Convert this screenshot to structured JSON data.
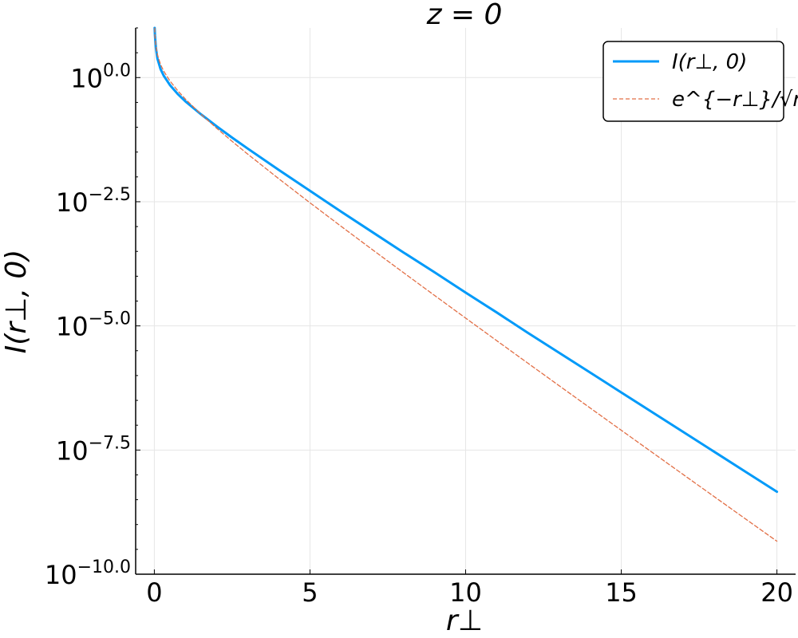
{
  "chart_data": {
    "type": "line",
    "title": "z = 0",
    "xlabel": "r⊥",
    "ylabel": "I(r⊥, 0)",
    "xlim": [
      -0.6,
      20.6
    ],
    "ylim_log10": [
      -10,
      1
    ],
    "yscale": "log10",
    "grid": true,
    "legend_position": "top-right",
    "x_ticks": [
      {
        "value": 0,
        "label": "0"
      },
      {
        "value": 5,
        "label": "5"
      },
      {
        "value": 10,
        "label": "10"
      },
      {
        "value": 15,
        "label": "15"
      },
      {
        "value": 20,
        "label": "20"
      }
    ],
    "y_ticks": [
      {
        "value_log10": 0,
        "base": "10",
        "exp": "0.0"
      },
      {
        "value_log10": -2.5,
        "base": "10",
        "exp": "−2.5"
      },
      {
        "value_log10": -5,
        "base": "10",
        "exp": "−5.0"
      },
      {
        "value_log10": -7.5,
        "base": "10",
        "exp": "−7.5"
      },
      {
        "value_log10": -10,
        "base": "10",
        "exp": "−10.0"
      }
    ],
    "series": [
      {
        "name": "I(r⊥, 0)",
        "color": "#009AF9",
        "style": "solid",
        "x": [
          0.01,
          0.02,
          0.05,
          0.1,
          0.2,
          0.3,
          0.5,
          0.75,
          1,
          1.5,
          2,
          2.5,
          3,
          4,
          5,
          6,
          7,
          8,
          9,
          10,
          11,
          12,
          13,
          14,
          15,
          16,
          17,
          18,
          19,
          20
        ],
        "y_log10": [
          1.1,
          0.85,
          0.6,
          0.38,
          0.17,
          0.04,
          -0.15,
          -0.33,
          -0.48,
          -0.74,
          -0.98,
          -1.21,
          -1.43,
          -1.86,
          -2.28,
          -2.7,
          -3.11,
          -3.52,
          -3.92,
          -4.33,
          -4.73,
          -5.14,
          -5.54,
          -5.94,
          -6.34,
          -6.74,
          -7.14,
          -7.54,
          -7.94,
          -8.34
        ]
      },
      {
        "name": "e^{−r⊥}/√r⊥",
        "color": "#E26F46",
        "style": "dashed",
        "x": [
          0.01,
          0.02,
          0.05,
          0.1,
          0.2,
          0.3,
          0.5,
          0.75,
          1,
          1.5,
          2,
          2.5,
          3,
          4,
          5,
          6,
          7,
          8,
          9,
          10,
          11,
          12,
          13,
          14,
          15,
          16,
          17,
          18,
          19,
          20
        ],
        "y_log10": [
          0.996,
          0.841,
          0.629,
          0.457,
          0.263,
          0.131,
          -0.067,
          -0.263,
          -0.434,
          -0.739,
          -1.019,
          -1.285,
          -1.541,
          -2.038,
          -2.521,
          -2.995,
          -3.463,
          -3.926,
          -4.386,
          -4.843,
          -5.298,
          -5.751,
          -6.203,
          -6.653,
          -7.102,
          -7.55,
          -7.998,
          -8.445,
          -8.891,
          -9.336
        ]
      }
    ]
  }
}
